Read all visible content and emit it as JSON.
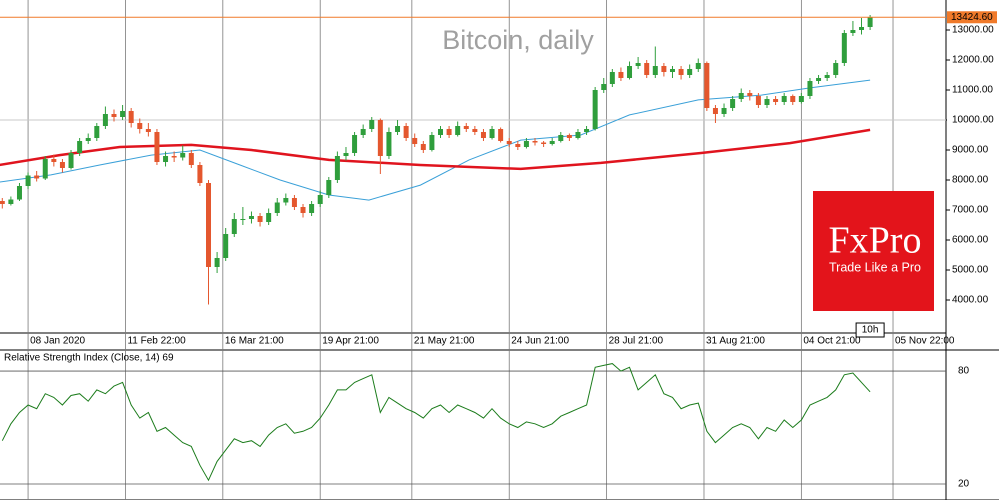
{
  "chart_data": [
    {
      "type": "candlestick",
      "title": "Bitcoin, daily",
      "x": [
        -2,
        1,
        4,
        7,
        10,
        13,
        16,
        19,
        22,
        25,
        28,
        31,
        34,
        37,
        40,
        43,
        46,
        49,
        52,
        55,
        58,
        61,
        64,
        67,
        70,
        73,
        76,
        79,
        82,
        85,
        88,
        91,
        94,
        97,
        100,
        103,
        106,
        109,
        112,
        115,
        118,
        121,
        124,
        127,
        130,
        133,
        136,
        139,
        142,
        145,
        148,
        151,
        154,
        157,
        160,
        163,
        166,
        169,
        172,
        175,
        178,
        181,
        184,
        187,
        190,
        193,
        196,
        199,
        202,
        205,
        208,
        211,
        214,
        217,
        220,
        223,
        226,
        229,
        232,
        235,
        238,
        241,
        244,
        247,
        250,
        253,
        256,
        259,
        262,
        265,
        268,
        271,
        274,
        277,
        280,
        283,
        286,
        289,
        292,
        295,
        298,
        301
      ],
      "ohlc": [
        [
          7300,
          7400,
          7050,
          7200
        ],
        [
          7200,
          7450,
          7150,
          7350
        ],
        [
          7350,
          7900,
          7300,
          7800
        ],
        [
          7800,
          8250,
          7700,
          8150
        ],
        [
          8150,
          8300,
          7950,
          8050
        ],
        [
          8050,
          8800,
          8000,
          8700
        ],
        [
          8700,
          8850,
          8450,
          8600
        ],
        [
          8600,
          8700,
          8250,
          8400
        ],
        [
          8400,
          9000,
          8350,
          8900
        ],
        [
          8900,
          9400,
          8800,
          9300
        ],
        [
          9300,
          9550,
          9200,
          9400
        ],
        [
          9400,
          9900,
          9300,
          9800
        ],
        [
          9800,
          10450,
          9700,
          10200
        ],
        [
          10200,
          10350,
          9950,
          10100
        ],
        [
          10100,
          10500,
          10000,
          10300
        ],
        [
          10300,
          10400,
          9750,
          9900
        ],
        [
          9900,
          10050,
          9550,
          9700
        ],
        [
          9700,
          9900,
          9450,
          9600
        ],
        [
          9600,
          9700,
          8500,
          8600
        ],
        [
          8600,
          8950,
          8450,
          8800
        ],
        [
          8800,
          8950,
          8600,
          8750
        ],
        [
          8750,
          9150,
          8650,
          8900
        ],
        [
          8900,
          9000,
          8400,
          8500
        ],
        [
          8500,
          8600,
          7800,
          7900
        ],
        [
          7900,
          8000,
          3850,
          5100
        ],
        [
          5100,
          5600,
          4900,
          5400
        ],
        [
          5400,
          6400,
          5300,
          6200
        ],
        [
          6200,
          6900,
          6100,
          6700
        ],
        [
          6700,
          7100,
          6500,
          6700
        ],
        [
          6700,
          6950,
          6550,
          6800
        ],
        [
          6800,
          6900,
          6450,
          6600
        ],
        [
          6600,
          7050,
          6500,
          6900
        ],
        [
          6900,
          7400,
          6800,
          7250
        ],
        [
          7250,
          7550,
          7150,
          7400
        ],
        [
          7400,
          7500,
          7000,
          7100
        ],
        [
          7100,
          7200,
          6750,
          6900
        ],
        [
          6900,
          7300,
          6800,
          7200
        ],
        [
          7200,
          7650,
          7100,
          7500
        ],
        [
          7500,
          8100,
          7400,
          8000
        ],
        [
          8000,
          8950,
          7900,
          8800
        ],
        [
          8800,
          9100,
          8650,
          8900
        ],
        [
          8900,
          9600,
          8800,
          9500
        ],
        [
          9500,
          9850,
          9400,
          9700
        ],
        [
          9700,
          10100,
          9600,
          10000
        ],
        [
          10000,
          10050,
          8200,
          8800
        ],
        [
          8800,
          9750,
          8700,
          9600
        ],
        [
          9600,
          10000,
          9500,
          9800
        ],
        [
          9800,
          9900,
          9300,
          9400
        ],
        [
          9400,
          9550,
          9100,
          9200
        ],
        [
          9200,
          9300,
          8900,
          9000
        ],
        [
          9000,
          9600,
          8950,
          9500
        ],
        [
          9500,
          9800,
          9400,
          9700
        ],
        [
          9700,
          9800,
          9400,
          9500
        ],
        [
          9500,
          9950,
          9450,
          9800
        ],
        [
          9800,
          9900,
          9600,
          9700
        ],
        [
          9700,
          9800,
          9500,
          9600
        ],
        [
          9600,
          9700,
          9300,
          9400
        ],
        [
          9400,
          9800,
          9350,
          9700
        ],
        [
          9700,
          9750,
          9250,
          9300
        ],
        [
          9300,
          9400,
          9100,
          9200
        ],
        [
          9200,
          9300,
          9000,
          9100
        ],
        [
          9100,
          9400,
          9050,
          9300
        ],
        [
          9300,
          9400,
          9150,
          9250
        ],
        [
          9250,
          9300,
          9100,
          9200
        ],
        [
          9200,
          9400,
          9150,
          9300
        ],
        [
          9300,
          9600,
          9250,
          9500
        ],
        [
          9500,
          9550,
          9300,
          9400
        ],
        [
          9400,
          9700,
          9350,
          9600
        ],
        [
          9600,
          9800,
          9500,
          9700
        ],
        [
          9700,
          11100,
          9650,
          11000
        ],
        [
          11000,
          11400,
          10900,
          11200
        ],
        [
          11200,
          11700,
          11100,
          11600
        ],
        [
          11600,
          11750,
          11300,
          11400
        ],
        [
          11400,
          11950,
          11350,
          11800
        ],
        [
          11800,
          12100,
          11700,
          11900
        ],
        [
          11900,
          12000,
          11400,
          11500
        ],
        [
          11500,
          12450,
          11400,
          11800
        ],
        [
          11800,
          11900,
          11450,
          11600
        ],
        [
          11600,
          11800,
          11400,
          11700
        ],
        [
          11700,
          11800,
          11350,
          11500
        ],
        [
          11500,
          11850,
          11400,
          11700
        ],
        [
          11700,
          12050,
          11600,
          11900
        ],
        [
          11900,
          11950,
          10300,
          10400
        ],
        [
          10400,
          10500,
          9900,
          10200
        ],
        [
          10200,
          10550,
          10100,
          10400
        ],
        [
          10400,
          10800,
          10300,
          10700
        ],
        [
          10700,
          11050,
          10600,
          10900
        ],
        [
          10900,
          11000,
          10650,
          10800
        ],
        [
          10800,
          10900,
          10400,
          10500
        ],
        [
          10500,
          10800,
          10400,
          10700
        ],
        [
          10700,
          10800,
          10500,
          10600
        ],
        [
          10600,
          10900,
          10500,
          10800
        ],
        [
          10800,
          10850,
          10500,
          10600
        ],
        [
          10600,
          10900,
          10550,
          10800
        ],
        [
          10800,
          11400,
          10700,
          11300
        ],
        [
          11300,
          11500,
          11200,
          11400
        ],
        [
          11400,
          11600,
          11300,
          11500
        ],
        [
          11500,
          12000,
          11400,
          11900
        ],
        [
          11900,
          13000,
          11800,
          12900
        ],
        [
          12900,
          13300,
          12800,
          13000
        ],
        [
          13000,
          13400,
          12850,
          13100
        ],
        [
          13100,
          13500,
          13000,
          13424.6
        ]
      ],
      "up_color": "#2f9e3c",
      "down_color": "#e4572e",
      "lines": [
        {
          "color": "#3aa0d8",
          "width": 1,
          "x": [
            -3,
            15,
            32,
            50,
            67,
            81,
            95,
            112,
            126,
            144,
            161,
            179,
            200,
            217,
            241,
            263,
            280,
            301
          ],
          "values": [
            7930,
            8170,
            8500,
            8830,
            9000,
            8500,
            8000,
            7500,
            7330,
            7830,
            8670,
            9330,
            9500,
            10170,
            10670,
            10830,
            11070,
            11330
          ]
        },
        {
          "color": "#e0141e",
          "width": 2.5,
          "x": [
            -3,
            18,
            39,
            64,
            85,
            112,
            144,
            179,
            207,
            242,
            273,
            301
          ],
          "values": [
            8500,
            8830,
            9100,
            9170,
            9000,
            8670,
            8500,
            8370,
            8570,
            8900,
            9230,
            9670
          ]
        }
      ],
      "xlim": [
        -2.8,
        327.5
      ],
      "xticks": [
        {
          "value": 7,
          "label": "08 Jan 2020"
        },
        {
          "value": 41,
          "label": "11 Feb 22:00"
        },
        {
          "value": 75,
          "label": "16 Mar 21:00"
        },
        {
          "value": 109,
          "label": "19 Apr 21:00"
        },
        {
          "value": 141,
          "label": "21 May 21:00"
        },
        {
          "value": 175,
          "label": "24 Jun 21:00"
        },
        {
          "value": 209,
          "label": "28 Jul 21:00"
        },
        {
          "value": 243,
          "label": "31 Aug 21:00"
        },
        {
          "value": 277,
          "label": "04 Oct 21:00"
        },
        {
          "value": 309,
          "label": "05 Nov 22:00"
        }
      ],
      "ylim": [
        2900,
        14000
      ],
      "yticks": [
        {
          "value": 4000,
          "label": "4000.00"
        },
        {
          "value": 5000,
          "label": "5000.00"
        },
        {
          "value": 6000,
          "label": "6000.00"
        },
        {
          "value": 7000,
          "label": "7000.00"
        },
        {
          "value": 8000,
          "label": "8000.00"
        },
        {
          "value": 9000,
          "label": "9000.00"
        },
        {
          "value": 10000,
          "label": "10000.00"
        },
        {
          "value": 11000,
          "label": "11000.00"
        },
        {
          "value": 12000,
          "label": "12000.00"
        },
        {
          "value": 13000,
          "label": "13000.00"
        }
      ],
      "grid": true,
      "last_price": {
        "value": 13424.6,
        "label": "13424.60",
        "color": "#f07a2a"
      },
      "level": {
        "value": 10000,
        "label": "10000.00",
        "color": "#c8c8c8"
      },
      "timer": "10h",
      "logo": {
        "brand": "FxPro",
        "tagline": "Trade Like a Pro",
        "color": "#e3141b"
      }
    },
    {
      "type": "line",
      "title": "Relative Strength Index (Close, 14) 69",
      "x": [
        -2,
        1,
        4,
        7,
        10,
        13,
        16,
        19,
        22,
        25,
        28,
        31,
        34,
        37,
        40,
        43,
        46,
        49,
        52,
        55,
        58,
        61,
        64,
        67,
        70,
        73,
        76,
        79,
        82,
        85,
        88,
        91,
        94,
        97,
        100,
        103,
        106,
        109,
        112,
        115,
        118,
        121,
        124,
        127,
        130,
        133,
        136,
        139,
        142,
        145,
        148,
        151,
        154,
        157,
        160,
        163,
        166,
        169,
        172,
        175,
        178,
        181,
        184,
        187,
        190,
        193,
        196,
        199,
        202,
        205,
        208,
        211,
        214,
        217,
        220,
        223,
        226,
        229,
        232,
        235,
        238,
        241,
        244,
        247,
        250,
        253,
        256,
        259,
        262,
        265,
        268,
        271,
        274,
        277,
        280,
        283,
        286,
        289,
        292,
        295,
        298,
        301
      ],
      "values": [
        43,
        52,
        58,
        62,
        60,
        68,
        66,
        62,
        67,
        68,
        64,
        70,
        68,
        72,
        74,
        62,
        55,
        58,
        48,
        50,
        46,
        42,
        40,
        30,
        22,
        32,
        38,
        44,
        42,
        43,
        40,
        46,
        50,
        52,
        47,
        48,
        50,
        55,
        62,
        70,
        70,
        74,
        76,
        78,
        58,
        66,
        63,
        60,
        58,
        55,
        60,
        62,
        58,
        62,
        60,
        58,
        55,
        60,
        55,
        52,
        50,
        53,
        52,
        50,
        52,
        56,
        58,
        60,
        62,
        82,
        83,
        84,
        80,
        82,
        70,
        74,
        78,
        68,
        66,
        60,
        62,
        63,
        48,
        42,
        46,
        50,
        52,
        50,
        44,
        50,
        48,
        54,
        50,
        54,
        62,
        64,
        66,
        70,
        78,
        79,
        74,
        69
      ],
      "color": "#1c7c1c",
      "xlim": [
        -2.8,
        327.5
      ],
      "ylim": [
        11.5,
        91.2
      ],
      "yticks": [
        20,
        80
      ]
    }
  ]
}
